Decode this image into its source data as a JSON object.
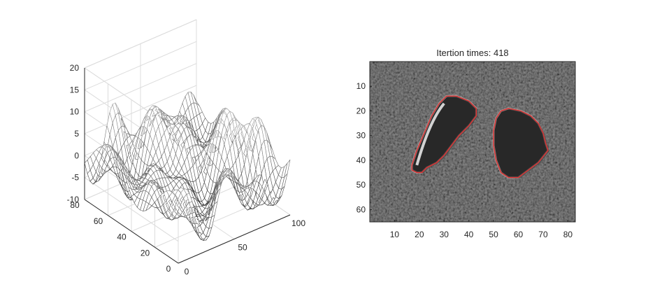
{
  "chart_data": [
    {
      "type": "surface",
      "style": "mesh",
      "colormap": "gray",
      "view": "3D",
      "grid": true,
      "xlim": [
        0,
        100
      ],
      "ylim": [
        0,
        80
      ],
      "zlim": [
        -10,
        20
      ],
      "x_ticks": [
        "0",
        "50",
        "100"
      ],
      "y_ticks": [
        "0",
        "20",
        "40",
        "60",
        "80"
      ],
      "z_ticks": [
        "-10",
        "-5",
        "0",
        "5",
        "10",
        "15",
        "20"
      ],
      "title": "",
      "xlabel": "",
      "ylabel": "",
      "zlabel": ""
    },
    {
      "type": "image",
      "colormap": "gray",
      "title": "Itertion times: 418",
      "xlim": [
        0,
        83
      ],
      "ylim": [
        0,
        65
      ],
      "y_reversed": true,
      "x_ticks": [
        "10",
        "20",
        "30",
        "40",
        "50",
        "60",
        "70",
        "80"
      ],
      "y_ticks": [
        "10",
        "20",
        "30",
        "40",
        "50",
        "60"
      ],
      "contour_color": "#e03030",
      "contours": [
        {
          "name": "",
          "x": [
            31,
            35,
            40,
            43,
            43,
            40,
            36,
            33,
            30,
            27,
            23,
            21,
            19,
            17,
            17,
            19,
            22,
            25,
            28,
            31
          ],
          "y": [
            14,
            14,
            16,
            19,
            22,
            26,
            30,
            34,
            38,
            41,
            43,
            45,
            45,
            44,
            42,
            36,
            29,
            22,
            17,
            14
          ]
        },
        {
          "name": "",
          "x": [
            56,
            61,
            65,
            68,
            70,
            71,
            72,
            68,
            64,
            60,
            56,
            53,
            51,
            50,
            50,
            51,
            53,
            56
          ],
          "y": [
            19,
            20,
            22,
            25,
            29,
            33,
            36,
            41,
            44,
            47,
            47,
            45,
            40,
            34,
            28,
            23,
            20,
            19
          ]
        }
      ]
    }
  ]
}
